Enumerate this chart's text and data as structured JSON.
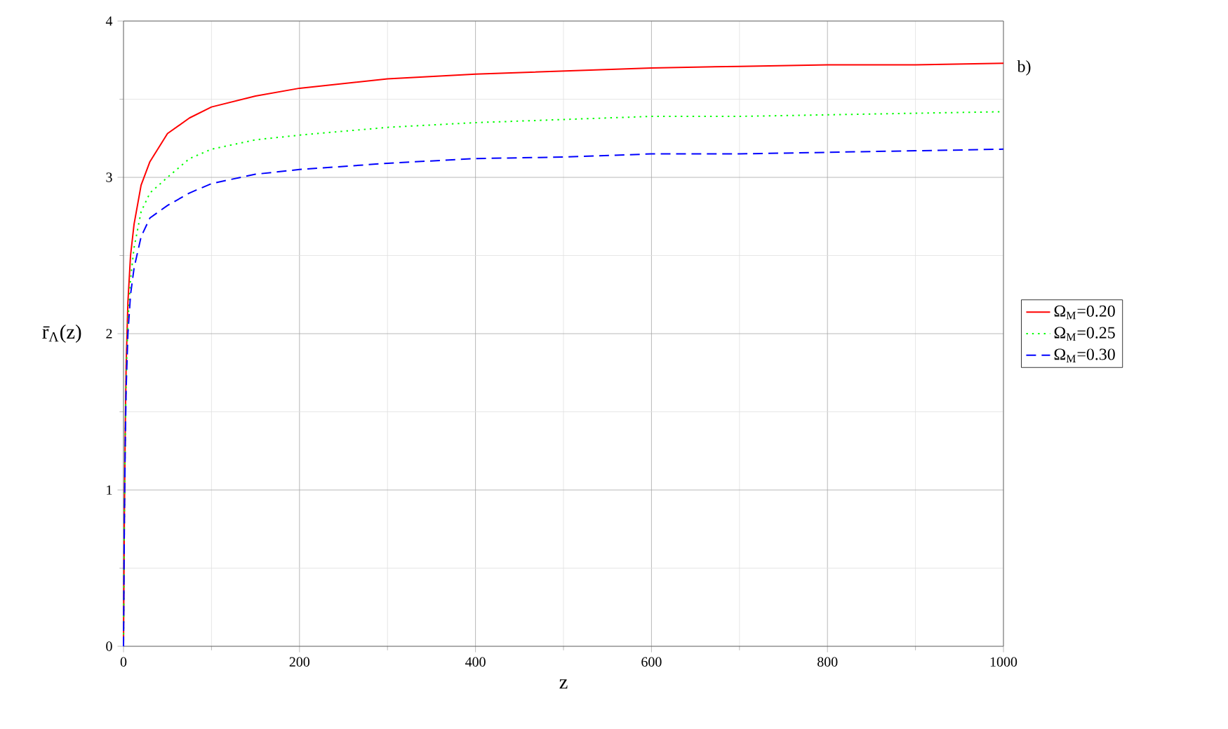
{
  "chart_data": {
    "type": "line",
    "xlabel": "z",
    "ylabel": "r̄$_{Λ}$(z)",
    "x": [
      0,
      1,
      2,
      3,
      5,
      8,
      12,
      20,
      30,
      50,
      75,
      100,
      150,
      200,
      300,
      400,
      500,
      600,
      700,
      800,
      900,
      1000
    ],
    "series": [
      {
        "name": "Ω$_{M}$=0.20",
        "color": "#ff0000",
        "line_style": "solid",
        "values": [
          0,
          0.85,
          1.4,
          1.8,
          2.2,
          2.5,
          2.7,
          2.95,
          3.1,
          3.28,
          3.38,
          3.45,
          3.52,
          3.57,
          3.63,
          3.66,
          3.68,
          3.7,
          3.71,
          3.72,
          3.72,
          3.73
        ]
      },
      {
        "name": "Ω$_{M}$=0.25",
        "color": "#00ff00",
        "line_style": "dotted",
        "values": [
          0,
          0.83,
          1.35,
          1.72,
          2.08,
          2.35,
          2.55,
          2.78,
          2.9,
          3.0,
          3.12,
          3.18,
          3.24,
          3.27,
          3.32,
          3.35,
          3.37,
          3.39,
          3.39,
          3.4,
          3.41,
          3.42
        ]
      },
      {
        "name": "Ω$_{M}$=0.30",
        "color": "#0000ff",
        "line_style": "dashed",
        "values": [
          0,
          0.82,
          1.3,
          1.65,
          2.0,
          2.25,
          2.42,
          2.62,
          2.74,
          2.82,
          2.9,
          2.96,
          3.02,
          3.05,
          3.09,
          3.12,
          3.13,
          3.15,
          3.15,
          3.16,
          3.17,
          3.18
        ]
      }
    ],
    "xlim": [
      0,
      1000
    ],
    "ylim": [
      0,
      4
    ],
    "xticks": [
      0,
      200,
      400,
      600,
      800,
      1000
    ],
    "yticks": [
      0,
      1,
      2,
      3,
      4
    ],
    "grid": true,
    "legend": "right",
    "marker": "none",
    "annotations": [
      "b)"
    ]
  }
}
